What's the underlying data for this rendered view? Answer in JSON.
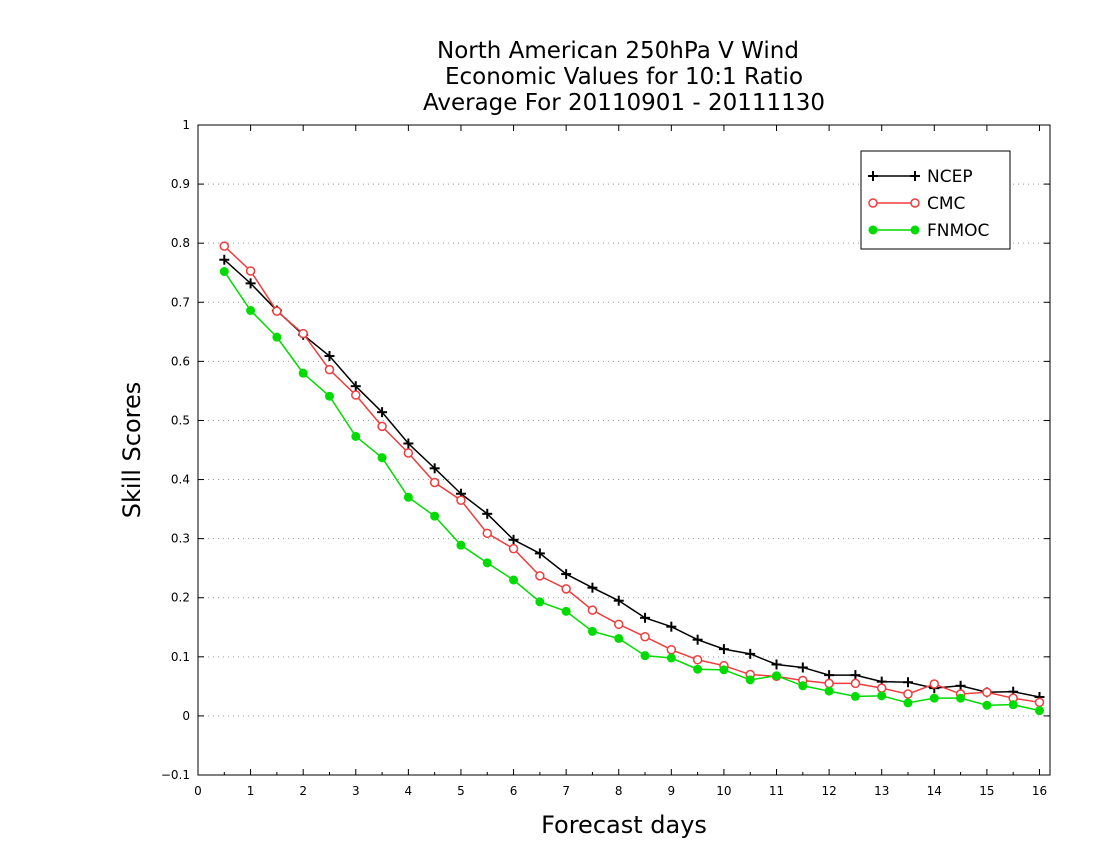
{
  "chart_data": {
    "type": "line",
    "title_lines": [
      "North American 250hPa V Wind",
      "Economic Values for 10:1 Ratio",
      "Average For 20110901 - 20111130"
    ],
    "xlabel": "Forecast days",
    "ylabel": "Skill Scores",
    "xlim": [
      0,
      16.2
    ],
    "ylim": [
      -0.1,
      1
    ],
    "x_ticks": [
      0,
      1,
      2,
      3,
      4,
      5,
      6,
      7,
      8,
      9,
      10,
      11,
      12,
      13,
      14,
      15,
      16
    ],
    "y_ticks": [
      -0.1,
      0,
      0.1,
      0.2,
      0.3,
      0.4,
      0.5,
      0.6,
      0.7,
      0.8,
      0.9,
      1
    ],
    "y_tick_labels": [
      "−0.1",
      "0",
      "0.1",
      "0.2",
      "0.3",
      "0.4",
      "0.5",
      "0.6",
      "0.7",
      "0.8",
      "0.9",
      "1"
    ],
    "grid": "horizontal dotted",
    "legend_position": "top-right",
    "x": [
      0.5,
      1,
      1.5,
      2,
      2.5,
      3,
      3.5,
      4,
      4.5,
      5,
      5.5,
      6,
      6.5,
      7,
      7.5,
      8,
      8.5,
      9,
      9.5,
      10,
      10.5,
      11,
      11.5,
      12,
      12.5,
      13,
      13.5,
      14,
      14.5,
      15,
      15.5,
      16
    ],
    "series": [
      {
        "name": "NCEP",
        "color": "#000000",
        "marker": "plus",
        "values": [
          0.772,
          0.732,
          0.686,
          0.645,
          0.609,
          0.558,
          0.514,
          0.461,
          0.419,
          0.376,
          0.342,
          0.298,
          0.275,
          0.24,
          0.217,
          0.195,
          0.166,
          0.151,
          0.129,
          0.113,
          0.105,
          0.087,
          0.082,
          0.069,
          0.069,
          0.058,
          0.057,
          0.047,
          0.051,
          0.04,
          0.041,
          0.032
        ]
      },
      {
        "name": "CMC",
        "color": "#f03c3c",
        "marker": "open-circle",
        "values": [
          0.795,
          0.753,
          0.685,
          0.647,
          0.586,
          0.543,
          0.49,
          0.445,
          0.395,
          0.365,
          0.309,
          0.283,
          0.237,
          0.215,
          0.179,
          0.155,
          0.134,
          0.112,
          0.095,
          0.085,
          0.07,
          0.067,
          0.06,
          0.055,
          0.055,
          0.047,
          0.037,
          0.054,
          0.037,
          0.04,
          0.03,
          0.023
        ]
      },
      {
        "name": "FNMOC",
        "color": "#00dc00",
        "marker": "filled-circle",
        "values": [
          0.752,
          0.686,
          0.641,
          0.58,
          0.541,
          0.473,
          0.437,
          0.37,
          0.338,
          0.289,
          0.259,
          0.23,
          0.193,
          0.177,
          0.143,
          0.131,
          0.102,
          0.098,
          0.079,
          0.078,
          0.061,
          0.068,
          0.051,
          0.042,
          0.033,
          0.034,
          0.022,
          0.03,
          0.03,
          0.018,
          0.019,
          0.009
        ]
      }
    ]
  }
}
